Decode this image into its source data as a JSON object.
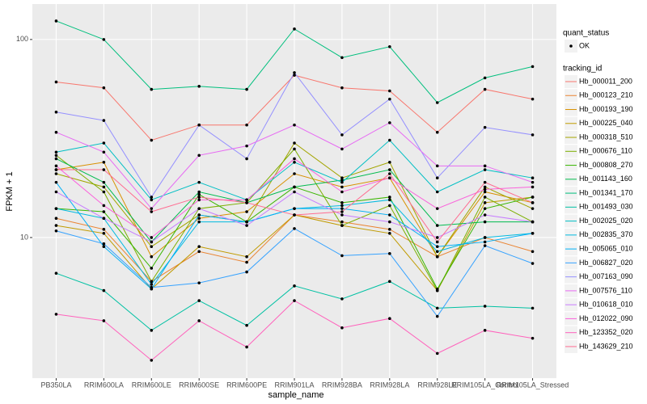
{
  "chart_data": {
    "type": "line",
    "x_label": "sample_name",
    "y_label": "FPKM + 1",
    "log_y": true,
    "grid": true,
    "point_color": "#000000",
    "shape_legend": {
      "title": "quant_status",
      "entries": [
        "OK"
      ]
    },
    "color_legend_title": "tracking_id",
    "legend_position": "right",
    "categories": [
      "PB350LA",
      "RRIM600LA",
      "RRIM600LE",
      "RRIM600SE",
      "RRIM600PE",
      "RRIM901LA",
      "RRIM928BA",
      "RRIM928LA",
      "RRIM928LE",
      "RRIM105LA_Control",
      "RRIM105LA_Stressed"
    ],
    "ylim": [
      1.95,
      151
    ],
    "yticks": [
      10,
      100
    ],
    "series": [
      {
        "name": "Hb_000011_200",
        "color": "#F8766D",
        "values": [
          61,
          57,
          31,
          37,
          37,
          66,
          57,
          55,
          34,
          56,
          50
        ]
      },
      {
        "name": "Hb_000123_210",
        "color": "#EA8331",
        "values": [
          12.5,
          11,
          6,
          8.5,
          7.5,
          13,
          12,
          11,
          8,
          10,
          8.5
        ]
      },
      {
        "name": "Hb_000193_190",
        "color": "#D89000",
        "values": [
          22,
          24,
          8,
          12.5,
          13.5,
          21,
          18,
          20,
          8,
          17,
          15
        ]
      },
      {
        "name": "Hb_000225_040",
        "color": "#C09B00",
        "values": [
          11.5,
          10.5,
          5.5,
          9,
          8,
          13,
          11.5,
          10.5,
          5.4,
          15,
          16
        ]
      },
      {
        "name": "Hb_000318_510",
        "color": "#A3A500",
        "values": [
          21,
          18,
          9,
          13,
          12,
          30,
          20,
          24,
          8,
          18,
          14
        ]
      },
      {
        "name": "Hb_000676_110",
        "color": "#7CAE00",
        "values": [
          26,
          17,
          6,
          14,
          15,
          28,
          11.5,
          14.5,
          5.4,
          16,
          12
        ]
      },
      {
        "name": "Hb_000808_270",
        "color": "#39B600",
        "values": [
          14,
          13.5,
          7,
          16.5,
          12,
          18,
          15,
          16,
          5.5,
          14,
          16
        ]
      },
      {
        "name": "Hb_001143_160",
        "color": "#00BB4E",
        "values": [
          25,
          19,
          9.5,
          17,
          15,
          18,
          19.5,
          22,
          11.5,
          12,
          12
        ]
      },
      {
        "name": "Hb_001341_170",
        "color": "#00BF7D",
        "values": [
          124,
          100,
          56,
          58,
          56,
          113,
          81,
          92,
          48,
          64,
          73
        ]
      },
      {
        "name": "Hb_001493_030",
        "color": "#00C1A3",
        "values": [
          6.6,
          5.4,
          3.4,
          4.8,
          3.6,
          5.7,
          4.9,
          6,
          4.4,
          4.5,
          4.4
        ]
      },
      {
        "name": "Hb_002025_020",
        "color": "#00BFC4",
        "values": [
          27,
          30,
          15.5,
          19,
          15.5,
          24,
          19,
          31,
          17,
          22,
          20
        ]
      },
      {
        "name": "Hb_002835_370",
        "color": "#00BAE0",
        "values": [
          14,
          12.5,
          5.8,
          12,
          12,
          14,
          14.5,
          15.5,
          8.5,
          10,
          10.5
        ]
      },
      {
        "name": "Hb_005065_010",
        "color": "#00B0F6",
        "values": [
          19,
          9,
          5.5,
          13,
          12,
          14,
          14,
          13,
          9,
          9.5,
          10.5
        ]
      },
      {
        "name": "Hb_006827_020",
        "color": "#35A2FF",
        "values": [
          10.8,
          9.3,
          5.6,
          5.9,
          6.7,
          11.1,
          8.1,
          8.3,
          4,
          9.1,
          7.4
        ]
      },
      {
        "name": "Hb_007163_090",
        "color": "#9590FF",
        "values": [
          43,
          39,
          16,
          37,
          25,
          68,
          33,
          50,
          20,
          36,
          33
        ]
      },
      {
        "name": "Hb_007576_110",
        "color": "#E76BF3",
        "values": [
          34,
          27,
          14,
          26,
          29,
          37,
          28,
          38,
          23,
          23,
          19
        ]
      },
      {
        "name": "Hb_010618_010",
        "color": "#C77CFF",
        "values": [
          17,
          12.5,
          9.5,
          14,
          11.5,
          17,
          13,
          12,
          10,
          13,
          12
        ]
      },
      {
        "name": "Hb_012022_090",
        "color": "#FA62DB",
        "values": [
          23,
          14.5,
          10,
          15.5,
          15.5,
          25,
          17,
          20,
          14,
          17.5,
          18
        ]
      },
      {
        "name": "Hb_123352_020",
        "color": "#FF62BC",
        "values": [
          4.1,
          3.8,
          2.4,
          3.8,
          2.8,
          4.8,
          3.5,
          3.9,
          2.6,
          3.4,
          3.1
        ]
      },
      {
        "name": "Hb_143629_210",
        "color": "#FF6C91",
        "values": [
          22,
          22,
          13.5,
          16,
          15,
          13,
          13.5,
          21,
          9.5,
          19,
          15
        ]
      }
    ]
  }
}
